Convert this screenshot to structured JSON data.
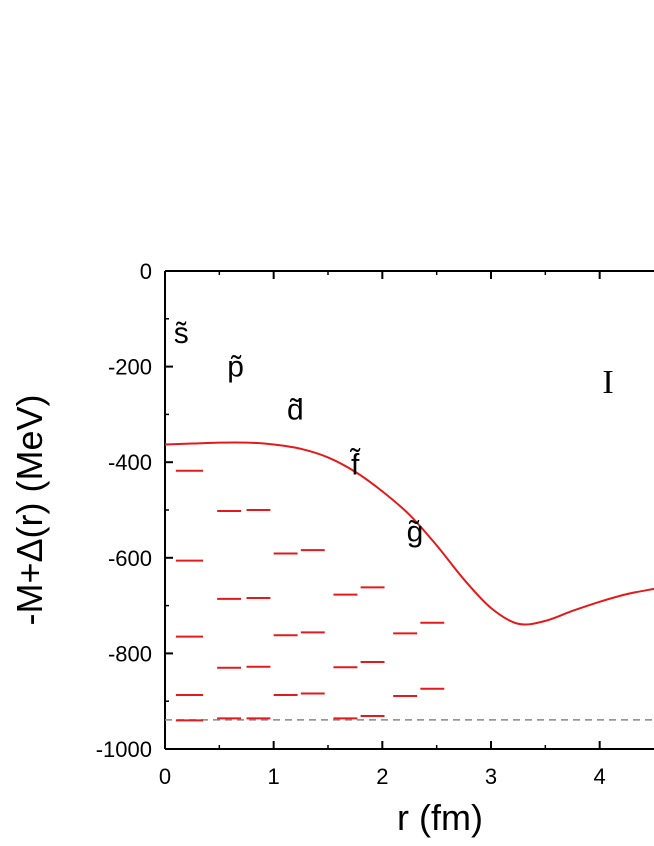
{
  "chart_data": {
    "type": "line",
    "title": "",
    "xlabel": "r (fm)",
    "ylabel": "-M+Δ(r) (MeV)",
    "xlim": [
      0,
      4.5
    ],
    "ylim": [
      -1000,
      0
    ],
    "xticks": [
      0,
      1,
      2,
      3,
      4
    ],
    "yticks": [
      0,
      -200,
      -400,
      -600,
      -800,
      -1000
    ],
    "panel_label": "I",
    "potential": {
      "color": "#e31a1c",
      "x": [
        0,
        0.25,
        0.5,
        0.75,
        1.0,
        1.25,
        1.5,
        1.75,
        2.0,
        2.25,
        2.5,
        2.75,
        3.0,
        3.25,
        3.5,
        3.75,
        4.0,
        4.25,
        4.5
      ],
      "y": [
        -363,
        -361,
        -359,
        -359,
        -363,
        -372,
        -390,
        -420,
        -461,
        -510,
        -574,
        -645,
        -705,
        -738,
        -732,
        -711,
        -692,
        -676,
        -665
      ]
    },
    "threshold": {
      "y": -939,
      "color": "#888888",
      "style": "dashed"
    },
    "level_color": "#e31a1c",
    "level_groups": [
      {
        "label": "s̃",
        "label_at": [
          0.15,
          -130
        ],
        "levels": [
          {
            "x": [
              0.1,
              0.35
            ],
            "e": -418
          },
          {
            "x": [
              0.1,
              0.35
            ],
            "e": -606
          },
          {
            "x": [
              0.1,
              0.35
            ],
            "e": -765
          },
          {
            "x": [
              0.1,
              0.35
            ],
            "e": -887
          },
          {
            "x": [
              0.1,
              0.35
            ],
            "e": -940
          }
        ]
      },
      {
        "label": "p̃",
        "label_at": [
          0.65,
          -200
        ],
        "levels": [
          {
            "x": [
              0.48,
              0.7
            ],
            "e": -502
          },
          {
            "x": [
              0.75,
              0.97
            ],
            "e": -500
          },
          {
            "x": [
              0.48,
              0.7
            ],
            "e": -686
          },
          {
            "x": [
              0.75,
              0.97
            ],
            "e": -684
          },
          {
            "x": [
              0.48,
              0.7
            ],
            "e": -830
          },
          {
            "x": [
              0.75,
              0.97
            ],
            "e": -828
          },
          {
            "x": [
              0.48,
              0.7
            ],
            "e": -936
          },
          {
            "x": [
              0.75,
              0.97
            ],
            "e": -936
          }
        ]
      },
      {
        "label": "d̃",
        "label_at": [
          1.2,
          -290
        ],
        "levels": [
          {
            "x": [
              1.0,
              1.22
            ],
            "e": -591
          },
          {
            "x": [
              1.25,
              1.47
            ],
            "e": -584
          },
          {
            "x": [
              1.0,
              1.22
            ],
            "e": -762
          },
          {
            "x": [
              1.25,
              1.47
            ],
            "e": -756
          },
          {
            "x": [
              1.0,
              1.22
            ],
            "e": -887
          },
          {
            "x": [
              1.25,
              1.47
            ],
            "e": -884
          }
        ]
      },
      {
        "label": "f̃",
        "label_at": [
          1.75,
          -405
        ],
        "levels": [
          {
            "x": [
              1.55,
              1.77
            ],
            "e": -677
          },
          {
            "x": [
              1.8,
              2.02
            ],
            "e": -662
          },
          {
            "x": [
              1.55,
              1.77
            ],
            "e": -829
          },
          {
            "x": [
              1.8,
              2.02
            ],
            "e": -818
          },
          {
            "x": [
              1.55,
              1.77
            ],
            "e": -936
          },
          {
            "x": [
              1.8,
              2.02
            ],
            "e": -931
          }
        ]
      },
      {
        "label": "g̃",
        "label_at": [
          2.3,
          -545
        ],
        "levels": [
          {
            "x": [
              2.1,
              2.32
            ],
            "e": -758
          },
          {
            "x": [
              2.35,
              2.57
            ],
            "e": -736
          },
          {
            "x": [
              2.1,
              2.32
            ],
            "e": -889
          },
          {
            "x": [
              2.35,
              2.57
            ],
            "e": -874
          }
        ]
      }
    ]
  }
}
